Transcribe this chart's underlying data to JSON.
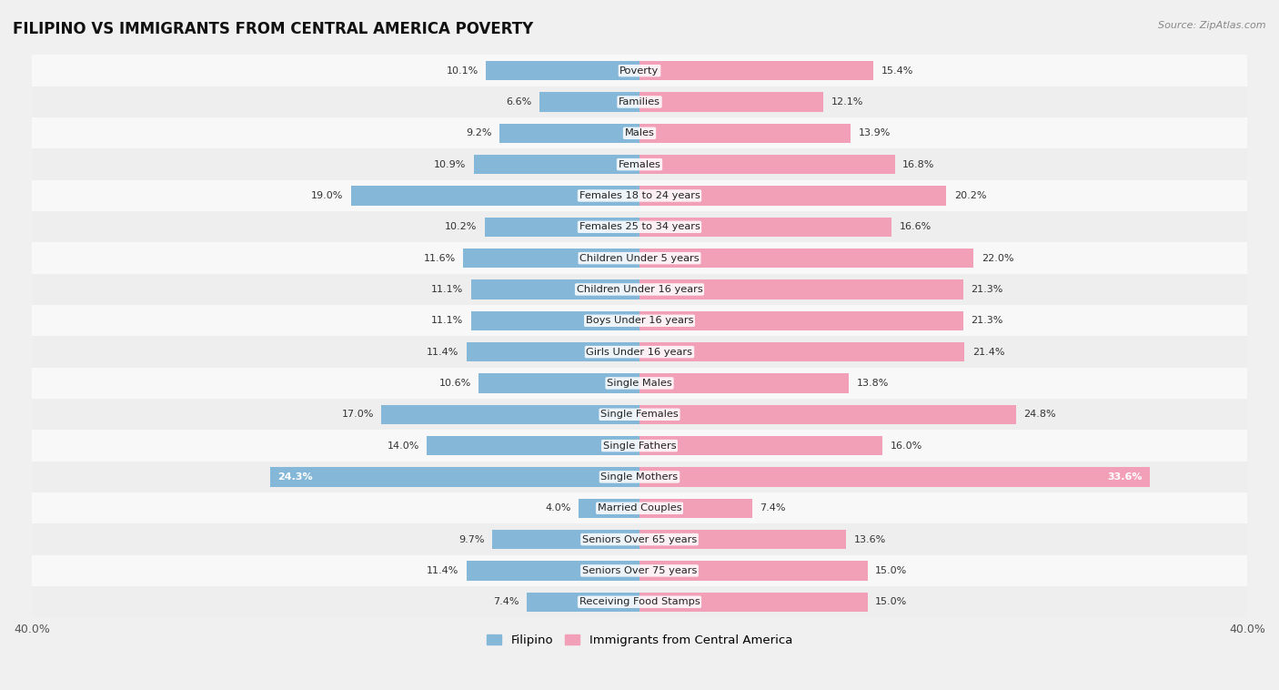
{
  "title": "FILIPINO VS IMMIGRANTS FROM CENTRAL AMERICA POVERTY",
  "source": "Source: ZipAtlas.com",
  "categories": [
    "Poverty",
    "Families",
    "Males",
    "Females",
    "Females 18 to 24 years",
    "Females 25 to 34 years",
    "Children Under 5 years",
    "Children Under 16 years",
    "Boys Under 16 years",
    "Girls Under 16 years",
    "Single Males",
    "Single Females",
    "Single Fathers",
    "Single Mothers",
    "Married Couples",
    "Seniors Over 65 years",
    "Seniors Over 75 years",
    "Receiving Food Stamps"
  ],
  "filipino": [
    10.1,
    6.6,
    9.2,
    10.9,
    19.0,
    10.2,
    11.6,
    11.1,
    11.1,
    11.4,
    10.6,
    17.0,
    14.0,
    24.3,
    4.0,
    9.7,
    11.4,
    7.4
  ],
  "central_america": [
    15.4,
    12.1,
    13.9,
    16.8,
    20.2,
    16.6,
    22.0,
    21.3,
    21.3,
    21.4,
    13.8,
    24.8,
    16.0,
    33.6,
    7.4,
    13.6,
    15.0,
    15.0
  ],
  "filipino_color": "#85b8d8",
  "central_america_color": "#f2a0b8",
  "row_light": "#f5f5f5",
  "row_dark": "#e8e8e8",
  "background_color": "#f0f0f0",
  "legend_filipino": "Filipino",
  "legend_central": "Immigrants from Central America",
  "bar_height": 0.62,
  "x_max": 40.0
}
